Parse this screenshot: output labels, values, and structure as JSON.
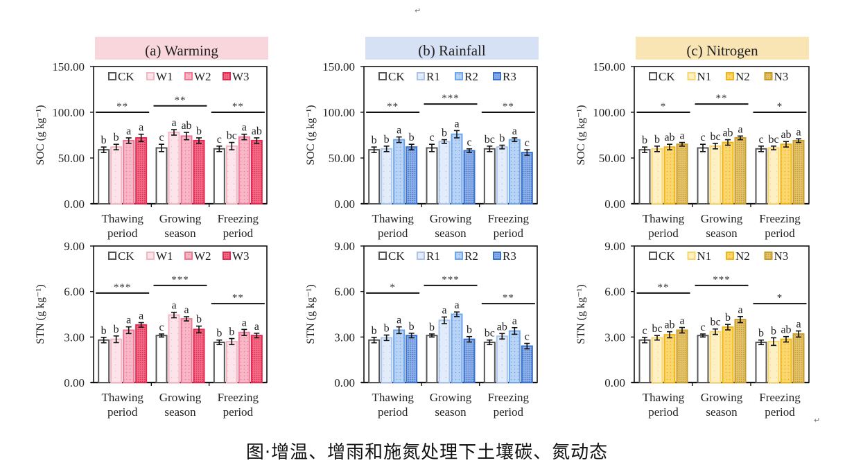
{
  "figure": {
    "caption": "图·增温、增雨和施氮处理下土壤碳、氮动态",
    "paragraph_mark": "↵"
  },
  "chart_data": [
    {
      "type": "bar",
      "panel": "(a)",
      "title": "(a)   Warming",
      "title_bg": "#f9d5dc",
      "ylabel": "SOC (g kg⁻¹)",
      "ylim": [
        0,
        150
      ],
      "yticks": [
        "0.00",
        "50.00",
        "100.00",
        "150.00"
      ],
      "ytick_values": [
        0,
        50,
        100,
        150
      ],
      "categories": [
        [
          "Thawing",
          "period"
        ],
        [
          "Growing",
          "season"
        ],
        [
          "Freezing",
          "period"
        ]
      ],
      "legend": "top",
      "series": [
        {
          "name": "CK",
          "color": "#555555",
          "fill": "#ffffff",
          "values": [
            59,
            61,
            60
          ],
          "errors": [
            3,
            4,
            3
          ],
          "letters": [
            "b",
            "c",
            "c"
          ]
        },
        {
          "name": "W1",
          "color": "#f4b6c2",
          "fill": "#fde4ea",
          "values": [
            62,
            78,
            63
          ],
          "errors": [
            3,
            3,
            4
          ],
          "letters": [
            "b",
            "a",
            "bc"
          ]
        },
        {
          "name": "W2",
          "color": "#ef7896",
          "fill": "#f8b7c7",
          "values": [
            69,
            74,
            73
          ],
          "errors": [
            3,
            4,
            3
          ],
          "letters": [
            "a",
            "ab",
            "a"
          ]
        },
        {
          "name": "W3",
          "color": "#e5284f",
          "fill": "#f16c88",
          "values": [
            72,
            69,
            69
          ],
          "errors": [
            4,
            3,
            3
          ],
          "letters": [
            "a",
            "b",
            "ab"
          ]
        }
      ],
      "significance": [
        "**",
        "**",
        "**"
      ],
      "sig_line_levels": [
        100,
        107,
        100
      ]
    },
    {
      "type": "bar",
      "panel": "(a)",
      "ylabel": "STN (g kg⁻¹)",
      "ylim": [
        0,
        9
      ],
      "yticks": [
        "0.00",
        "3.00",
        "6.00",
        "9.00"
      ],
      "ytick_values": [
        0,
        3,
        6,
        9
      ],
      "categories": [
        [
          "Thawing",
          "period"
        ],
        [
          "Growing",
          "season"
        ],
        [
          "Freezing",
          "period"
        ]
      ],
      "legend": "top",
      "series": [
        {
          "name": "CK",
          "color": "#555555",
          "fill": "#ffffff",
          "values": [
            2.8,
            3.1,
            2.65
          ],
          "errors": [
            0.18,
            0.1,
            0.15
          ],
          "letters": [
            "b",
            "c",
            "b"
          ]
        },
        {
          "name": "W1",
          "color": "#f4b6c2",
          "fill": "#fde4ea",
          "values": [
            2.85,
            4.45,
            2.7
          ],
          "errors": [
            0.22,
            0.18,
            0.2
          ],
          "letters": [
            "b",
            "a",
            "b"
          ]
        },
        {
          "name": "W2",
          "color": "#ef7896",
          "fill": "#f8b7c7",
          "values": [
            3.45,
            4.2,
            3.3
          ],
          "errors": [
            0.22,
            0.14,
            0.2
          ],
          "letters": [
            "a",
            "a",
            "a"
          ]
        },
        {
          "name": "W3",
          "color": "#e5284f",
          "fill": "#f16c88",
          "values": [
            3.8,
            3.5,
            3.1
          ],
          "errors": [
            0.15,
            0.22,
            0.15
          ],
          "letters": [
            "a",
            "b",
            "a"
          ]
        }
      ],
      "significance": [
        "***",
        "***",
        "**"
      ],
      "sig_line_levels": [
        5.9,
        6.4,
        5.2
      ]
    },
    {
      "type": "bar",
      "panel": "(b)",
      "title": "(b)   Rainfall",
      "title_bg": "#d6e1f5",
      "ylabel": "SOC (g kg⁻¹)",
      "ylim": [
        0,
        150
      ],
      "yticks": [
        "0.00",
        "50.00",
        "100.00",
        "150.00"
      ],
      "ytick_values": [
        0,
        50,
        100,
        150
      ],
      "categories": [
        [
          "Thawing",
          "period"
        ],
        [
          "Growing",
          "season"
        ],
        [
          "Freezing",
          "period"
        ]
      ],
      "legend": "top",
      "series": [
        {
          "name": "CK",
          "color": "#555555",
          "fill": "#ffffff",
          "values": [
            59,
            61,
            60
          ],
          "errors": [
            3,
            4,
            3
          ],
          "letters": [
            "b",
            "c",
            "bc"
          ]
        },
        {
          "name": "R1",
          "color": "#a9c3ec",
          "fill": "#e3ecfa",
          "values": [
            60,
            68,
            62
          ],
          "errors": [
            3,
            2,
            2
          ],
          "letters": [
            "b",
            "b",
            "b"
          ]
        },
        {
          "name": "R2",
          "color": "#6ea6ec",
          "fill": "#b9d3f5",
          "values": [
            70,
            76,
            70
          ],
          "errors": [
            3,
            4,
            2
          ],
          "letters": [
            "a",
            "a",
            "a"
          ]
        },
        {
          "name": "R3",
          "color": "#3c72cf",
          "fill": "#8eb0e6",
          "values": [
            62,
            58,
            56
          ],
          "errors": [
            3,
            2,
            3
          ],
          "letters": [
            "b",
            "c",
            "c"
          ]
        }
      ],
      "significance": [
        "**",
        "***",
        "**"
      ],
      "sig_line_levels": [
        100,
        109,
        100
      ]
    },
    {
      "type": "bar",
      "panel": "(b)",
      "ylabel": "STN (g kg⁻¹)",
      "ylim": [
        0,
        9
      ],
      "yticks": [
        "0.00",
        "3.00",
        "6.00",
        "9.00"
      ],
      "ytick_values": [
        0,
        3,
        6,
        9
      ],
      "categories": [
        [
          "Thawing",
          "period"
        ],
        [
          "Growing",
          "season"
        ],
        [
          "Freezing",
          "period"
        ]
      ],
      "legend": "top",
      "series": [
        {
          "name": "CK",
          "color": "#555555",
          "fill": "#ffffff",
          "values": [
            2.8,
            3.1,
            2.65
          ],
          "errors": [
            0.18,
            0.1,
            0.15
          ],
          "letters": [
            "b",
            "b",
            "bc"
          ]
        },
        {
          "name": "R1",
          "color": "#a9c3ec",
          "fill": "#e3ecfa",
          "values": [
            2.95,
            4.1,
            3.05
          ],
          "errors": [
            0.18,
            0.22,
            0.18
          ],
          "letters": [
            "b",
            "a",
            "ab"
          ]
        },
        {
          "name": "R2",
          "color": "#6ea6ec",
          "fill": "#b9d3f5",
          "values": [
            3.45,
            4.5,
            3.4
          ],
          "errors": [
            0.22,
            0.15,
            0.22
          ],
          "letters": [
            "a",
            "a",
            "a"
          ]
        },
        {
          "name": "R3",
          "color": "#3c72cf",
          "fill": "#8eb0e6",
          "values": [
            3.1,
            2.85,
            2.4
          ],
          "errors": [
            0.15,
            0.18,
            0.18
          ],
          "letters": [
            "b",
            "b",
            "c"
          ]
        }
      ],
      "significance": [
        "*",
        "***",
        "**"
      ],
      "sig_line_levels": [
        5.9,
        6.4,
        5.2
      ]
    },
    {
      "type": "bar",
      "panel": "(c)",
      "title": "(c)   Nitrogen",
      "title_bg": "#f9e4b4",
      "ylabel": "SOC (g kg⁻¹)",
      "ylim": [
        0,
        150
      ],
      "yticks": [
        "0.00",
        "50.00",
        "100.00",
        "150.00"
      ],
      "ytick_values": [
        0,
        50,
        100,
        150
      ],
      "categories": [
        [
          "Thawing",
          "period"
        ],
        [
          "Growing",
          "season"
        ],
        [
          "Freezing",
          "period"
        ]
      ],
      "legend": "top",
      "series": [
        {
          "name": "CK",
          "color": "#555555",
          "fill": "#ffffff",
          "values": [
            59,
            61,
            60
          ],
          "errors": [
            3,
            4,
            3
          ],
          "letters": [
            "b",
            "c",
            "c"
          ]
        },
        {
          "name": "N1",
          "color": "#f9d56a",
          "fill": "#fdf0c4",
          "values": [
            60,
            63,
            61
          ],
          "errors": [
            3,
            3,
            2
          ],
          "letters": [
            "b",
            "bc",
            "bc"
          ]
        },
        {
          "name": "N2",
          "color": "#f1b511",
          "fill": "#f9d66f",
          "values": [
            62,
            67,
            65
          ],
          "errors": [
            3,
            3,
            3
          ],
          "letters": [
            "ab",
            "ab",
            "ab"
          ]
        },
        {
          "name": "N3",
          "color": "#c89b2a",
          "fill": "#e3c46e",
          "values": [
            65,
            72,
            69
          ],
          "errors": [
            2,
            2,
            2
          ],
          "letters": [
            "a",
            "a",
            "a"
          ]
        }
      ],
      "significance": [
        "*",
        "**",
        "*"
      ],
      "sig_line_levels": [
        100,
        109,
        100
      ]
    },
    {
      "type": "bar",
      "panel": "(c)",
      "ylabel": "STN (g kg⁻¹)",
      "ylim": [
        0,
        9
      ],
      "yticks": [
        "0.00",
        "3.00",
        "6.00",
        "9.00"
      ],
      "ytick_values": [
        0,
        3,
        6,
        9
      ],
      "categories": [
        [
          "Thawing",
          "period"
        ],
        [
          "Growing",
          "season"
        ],
        [
          "Freezing",
          "period"
        ]
      ],
      "legend": "top",
      "series": [
        {
          "name": "CK",
          "color": "#555555",
          "fill": "#ffffff",
          "values": [
            2.8,
            3.1,
            2.65
          ],
          "errors": [
            0.18,
            0.1,
            0.15
          ],
          "letters": [
            "c",
            "c",
            "b"
          ]
        },
        {
          "name": "N1",
          "color": "#f9d56a",
          "fill": "#fdf0c4",
          "values": [
            2.95,
            3.35,
            2.7
          ],
          "errors": [
            0.15,
            0.18,
            0.25
          ],
          "letters": [
            "bc",
            "bc",
            "b"
          ]
        },
        {
          "name": "N2",
          "color": "#f1b511",
          "fill": "#f9d66f",
          "values": [
            3.15,
            3.65,
            2.85
          ],
          "errors": [
            0.2,
            0.18,
            0.18
          ],
          "letters": [
            "ab",
            "b",
            "ab"
          ]
        },
        {
          "name": "N3",
          "color": "#c89b2a",
          "fill": "#e3c46e",
          "values": [
            3.45,
            4.15,
            3.2
          ],
          "errors": [
            0.18,
            0.2,
            0.2
          ],
          "letters": [
            "a",
            "a",
            "a"
          ]
        }
      ],
      "significance": [
        "**",
        "***",
        "*"
      ],
      "sig_line_levels": [
        5.9,
        6.4,
        5.2
      ]
    }
  ]
}
